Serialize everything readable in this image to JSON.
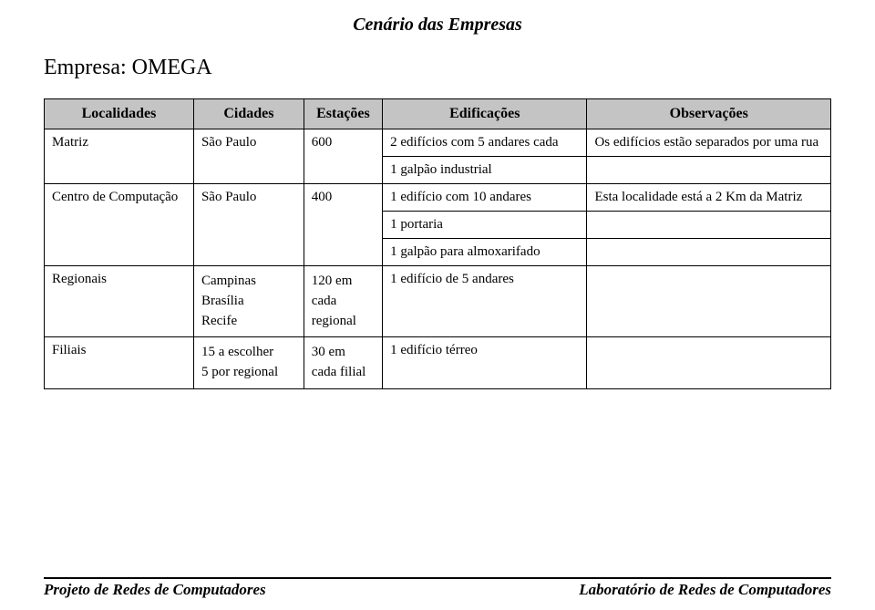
{
  "header": {
    "title": "Cenário das Empresas",
    "company_label": "Empresa:",
    "company_name": "OMEGA"
  },
  "table": {
    "columns": {
      "loc": "Localidades",
      "city": "Cidades",
      "sta": "Estações",
      "edif": "Edificações",
      "obs": "Observações"
    },
    "rows": {
      "matriz": {
        "loc": "Matriz",
        "city": "São Paulo",
        "sta": "600",
        "edif1": "2 edifícios com 5 andares cada",
        "edif2": "1 galpão industrial",
        "obs": "Os edifícios estão separados por uma rua"
      },
      "centro": {
        "loc": "Centro de Computação",
        "city": "São Paulo",
        "sta": "400",
        "edif1": "1 edifício com 10 andares",
        "edif2": "1 portaria",
        "edif3": "1 galpão para almoxarifado",
        "obs": "Esta localidade está a 2 Km da Matriz"
      },
      "regionais": {
        "loc": "Regionais",
        "city1": "Campinas",
        "city2": "Brasília",
        "city3": "Recife",
        "sta1": "120 em",
        "sta2": "cada",
        "sta3": "regional",
        "edif": "1 edifício de 5 andares"
      },
      "filiais": {
        "loc": "Filiais",
        "city1": "15 a escolher",
        "city2": "5 por regional",
        "sta1": "30 em",
        "sta2": "cada filial",
        "edif": "1 edifício térreo"
      }
    }
  },
  "footer": {
    "left": "Projeto de Redes de Computadores",
    "right": "Laboratório de Redes de Computadores"
  },
  "colors": {
    "header_bg": "#c4c4c4",
    "border": "#000000",
    "text": "#000000",
    "background": "#ffffff"
  }
}
